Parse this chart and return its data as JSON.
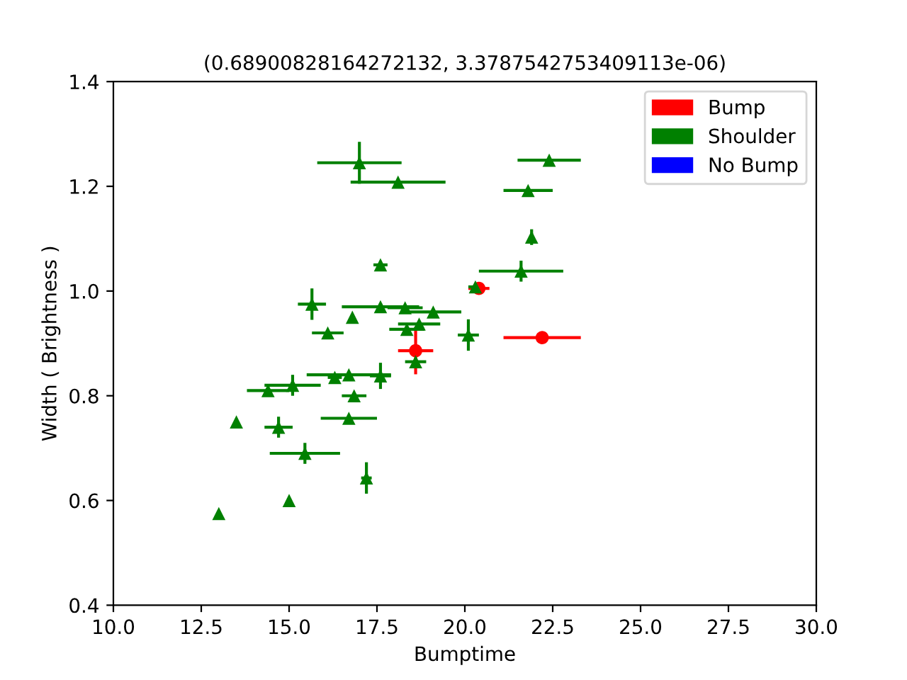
{
  "chart_data": {
    "type": "scatter",
    "title": "(0.68900828164272132, 3.3787542753409113e-06)",
    "xlabel": "Bumptime",
    "ylabel": "Width ( Brightness )",
    "xlim": [
      10.0,
      30.0
    ],
    "xticks": [
      {
        "value": 10,
        "label": "10.0"
      },
      {
        "value": 12.5,
        "label": "12.5"
      },
      {
        "value": 15,
        "label": "15.0"
      },
      {
        "value": 17.5,
        "label": "17.5"
      },
      {
        "value": 20,
        "label": "20.0"
      },
      {
        "value": 22.5,
        "label": "22.5"
      },
      {
        "value": 25,
        "label": "25.0"
      },
      {
        "value": 27.5,
        "label": "27.5"
      },
      {
        "value": 30,
        "label": "30.0"
      }
    ],
    "ylim": [
      0.4,
      1.4
    ],
    "yticks": [
      {
        "value": 0.4,
        "label": "0.4"
      },
      {
        "value": 0.6,
        "label": "0.6"
      },
      {
        "value": 0.8,
        "label": "0.8"
      },
      {
        "value": 1.0,
        "label": "1.0"
      },
      {
        "value": 1.2,
        "label": "1.2"
      },
      {
        "value": 1.4,
        "label": "1.4"
      }
    ],
    "legend": "top right",
    "series": [
      {
        "name": "Bump",
        "color": "#ff0000",
        "marker": "circle",
        "x": [
          18.6,
          20.4,
          22.2
        ],
        "values": [
          0.886,
          1.005,
          0.911
        ],
        "xerrors": [
          0.5,
          0.3,
          1.1
        ],
        "errors": [
          0.045,
          null,
          null
        ]
      },
      {
        "name": "Shoulder",
        "color": "#008000",
        "marker": "triangle",
        "x": [
          13.0,
          13.5,
          14.4,
          15.1,
          14.7,
          15.45,
          15.0,
          15.65,
          16.1,
          16.3,
          16.7,
          16.7,
          16.8,
          16.85,
          17.0,
          17.2,
          17.6,
          17.6,
          17.6,
          18.1,
          18.3,
          18.35,
          18.6,
          18.7,
          19.1,
          20.1,
          20.3,
          21.6,
          21.9,
          21.8,
          22.4
        ],
        "values": [
          0.575,
          0.75,
          0.81,
          0.82,
          0.74,
          0.69,
          0.6,
          0.975,
          0.92,
          0.835,
          0.84,
          0.757,
          0.95,
          0.8,
          1.245,
          0.643,
          1.05,
          0.97,
          0.838,
          1.208,
          0.968,
          0.927,
          0.865,
          0.937,
          0.96,
          0.916,
          1.008,
          1.038,
          1.103,
          1.192,
          1.25
        ],
        "xerrors": [
          null,
          null,
          0.6,
          0.8,
          0.4,
          1.0,
          null,
          0.4,
          0.45,
          0.2,
          1.2,
          0.8,
          null,
          0.35,
          1.2,
          0.15,
          0.2,
          1.1,
          0.3,
          1.35,
          0.5,
          0.5,
          0.3,
          0.6,
          0.8,
          0.3,
          0.2,
          1.2,
          null,
          0.7,
          0.9
        ],
        "errors": [
          null,
          null,
          null,
          0.02,
          0.02,
          0.02,
          null,
          0.03,
          null,
          null,
          null,
          null,
          null,
          null,
          0.04,
          0.03,
          null,
          null,
          0.025,
          null,
          null,
          null,
          null,
          null,
          null,
          0.03,
          null,
          0.02,
          0.015,
          null,
          null
        ]
      },
      {
        "name": "No Bump",
        "color": "#0000ff",
        "marker": "square"
      }
    ]
  }
}
